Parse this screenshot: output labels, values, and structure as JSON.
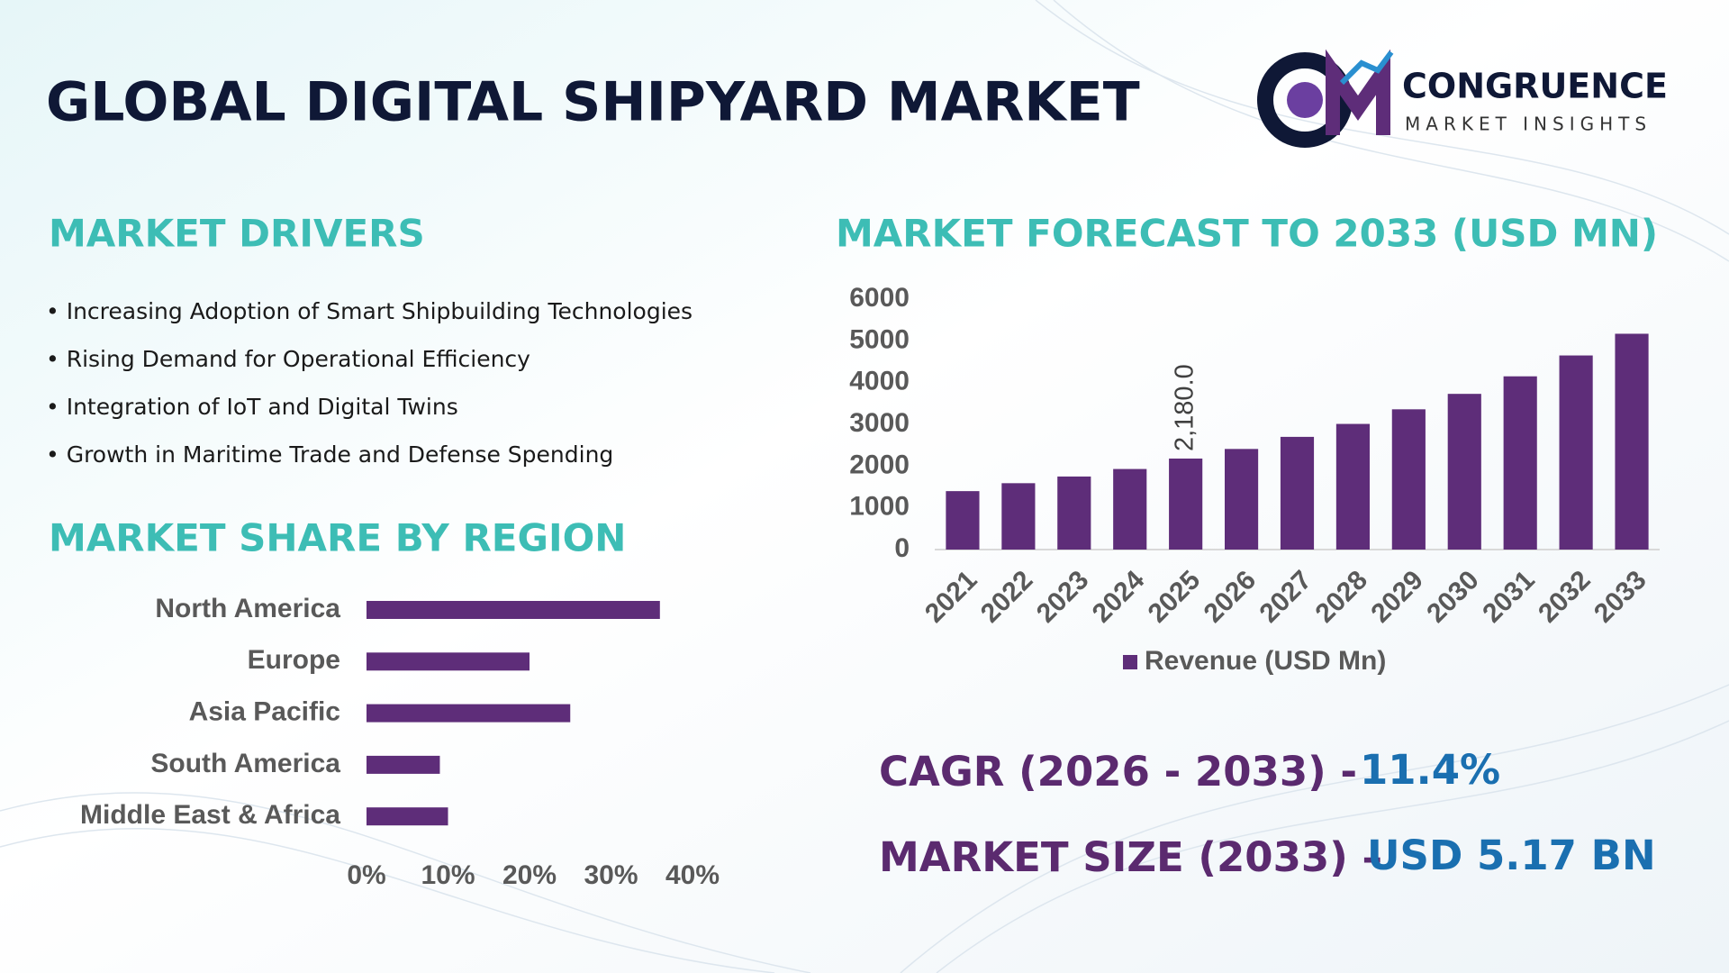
{
  "title": "GLOBAL DIGITAL SHIPYARD MARKET",
  "logo": {
    "name": "CONGRUENCE",
    "tagline": "MARKET INSIGHTS"
  },
  "drivers": {
    "heading": "MARKET DRIVERS",
    "items": [
      "• Increasing Adoption of Smart Shipbuilding Technologies",
      "• Rising Demand for Operational Efficiency",
      "• Integration of IoT and Digital Twins",
      "• Growth in Maritime Trade and Defense Spending"
    ]
  },
  "chart_data": [
    {
      "type": "bar",
      "title": "MARKET FORECAST TO 2033 (USD MN)",
      "categories": [
        "2021",
        "2022",
        "2023",
        "2024",
        "2025",
        "2026",
        "2027",
        "2028",
        "2029",
        "2030",
        "2031",
        "2032",
        "2033"
      ],
      "series": [
        {
          "name": "Revenue (USD Mn)",
          "color": "#5e2d79",
          "values": [
            1400,
            1590,
            1750,
            1930,
            2180,
            2410,
            2700,
            3010,
            3360,
            3730,
            4150,
            4650,
            5170
          ],
          "value_labels": [
            null,
            null,
            null,
            null,
            "2,180.0",
            null,
            null,
            null,
            null,
            null,
            null,
            null,
            null
          ]
        }
      ],
      "ylim": [
        0,
        6000
      ],
      "yticks": [
        0,
        1000,
        2000,
        3000,
        4000,
        5000,
        6000
      ],
      "grid": false,
      "legend": "bottom"
    },
    {
      "type": "hbar",
      "title": "MARKET SHARE BY REGION",
      "categories": [
        "North America",
        "Europe",
        "Asia Pacific",
        "South America",
        "Middle East & Africa"
      ],
      "values": [
        36,
        20,
        25,
        9,
        10
      ],
      "color": "#5e2d79",
      "xlim": [
        0,
        40
      ],
      "xticks": [
        {
          "value": 0,
          "label": "0%"
        },
        {
          "value": 10,
          "label": "10%"
        },
        {
          "value": 20,
          "label": "20%"
        },
        {
          "value": 30,
          "label": "30%"
        },
        {
          "value": 40,
          "label": "40%"
        }
      ],
      "grid": false
    }
  ],
  "stats": [
    {
      "label": "CAGR (2026 - 2033) -",
      "value": "11.4%"
    },
    {
      "label": "MARKET SIZE (2033) –",
      "value": "USD 5.17 BN"
    }
  ]
}
